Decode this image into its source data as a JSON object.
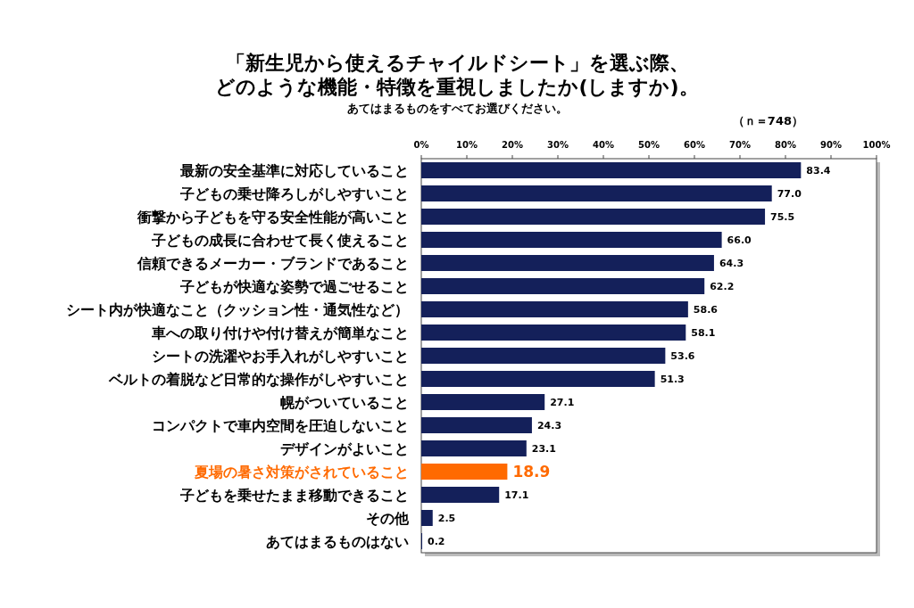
{
  "chart_data": {
    "type": "bar",
    "orientation": "horizontal",
    "title": "「新生児から使えるチャイルドシート」を選ぶ際、どのような機能・特徴を重視しましたか(しますか)。",
    "subtitle": "あてはまるものをすべてお選びください。",
    "annotations": [
      "（ｎ＝748）"
    ],
    "categories": [
      "最新の安全基準に対応していること",
      "子どもの乗せ降ろしがしやすいこと",
      "衝撃から子どもを守る安全性能が高いこと",
      "子どもの成長に合わせて長く使えること",
      "信頼できるメーカー・ブランドであること",
      "子どもが快適な姿勢で過ごせること",
      "シート内が快適なこと（クッション性・通気性など）",
      "車への取り付けや付け替えが簡単なこと",
      "シートの洗濯やお手入れがしやすいこと",
      "ベルトの着脱など日常的な操作がしやすいこと",
      "幌がついていること",
      "コンパクトで車内空間を圧迫しないこと",
      "デザインがよいこと",
      "夏場の暑さ対策がされていること",
      "子どもを乗せたまま移動できること",
      "その他",
      "あてはまるものはない"
    ],
    "values": [
      83.4,
      77.0,
      75.5,
      66.0,
      64.3,
      62.2,
      58.6,
      58.1,
      53.6,
      51.3,
      27.1,
      24.3,
      23.1,
      18.9,
      17.1,
      2.5,
      0.2
    ],
    "value_labels": [
      "83.4",
      "77.0",
      "75.5",
      "66.0",
      "64.3",
      "62.2",
      "58.6",
      "58.1",
      "53.6",
      "51.3",
      "27.1",
      "24.3",
      "23.1",
      "18.9",
      "17.1",
      "2.5",
      "0.2"
    ],
    "colors": [
      "#14205a",
      "#14205a",
      "#14205a",
      "#14205a",
      "#14205a",
      "#14205a",
      "#14205a",
      "#14205a",
      "#14205a",
      "#14205a",
      "#14205a",
      "#14205a",
      "#14205a",
      "#ff6a00",
      "#14205a",
      "#14205a",
      "#14205a"
    ],
    "xlim": [
      0,
      100
    ],
    "xticks": [
      {
        "value": 0,
        "label": "0%"
      },
      {
        "value": 10,
        "label": "10%"
      },
      {
        "value": 20,
        "label": "20%"
      },
      {
        "value": 30,
        "label": "30%"
      },
      {
        "value": 40,
        "label": "40%"
      },
      {
        "value": 50,
        "label": "50%"
      },
      {
        "value": 60,
        "label": "60%"
      },
      {
        "value": 70,
        "label": "70%"
      },
      {
        "value": 80,
        "label": "80%"
      },
      {
        "value": 90,
        "label": "90%"
      },
      {
        "value": 100,
        "label": "100%"
      }
    ]
  }
}
